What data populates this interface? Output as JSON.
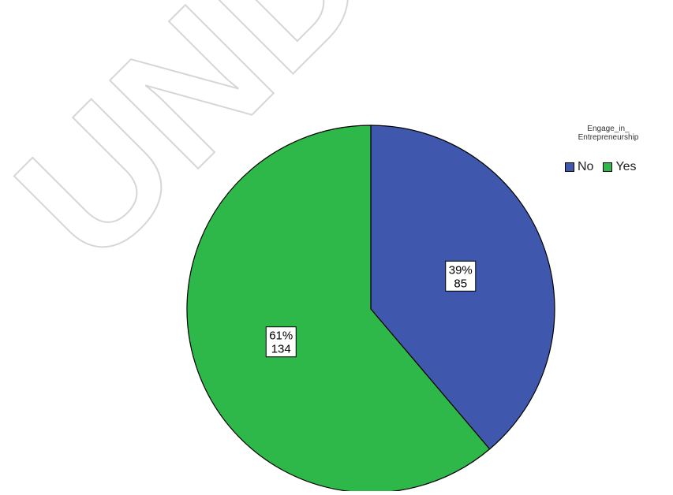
{
  "watermark": "UNDER P",
  "chart_data": {
    "type": "pie",
    "legend_title": "Engage_in_ Entrepreneurship",
    "legend_placement": "top-right",
    "slices": [
      {
        "name": "No",
        "value": 85,
        "percent_label": "39%",
        "value_label": "85",
        "color": "#3f58ad"
      },
      {
        "name": "Yes",
        "value": 134,
        "percent_label": "61%",
        "value_label": "134",
        "color": "#2eb84a"
      }
    ]
  }
}
